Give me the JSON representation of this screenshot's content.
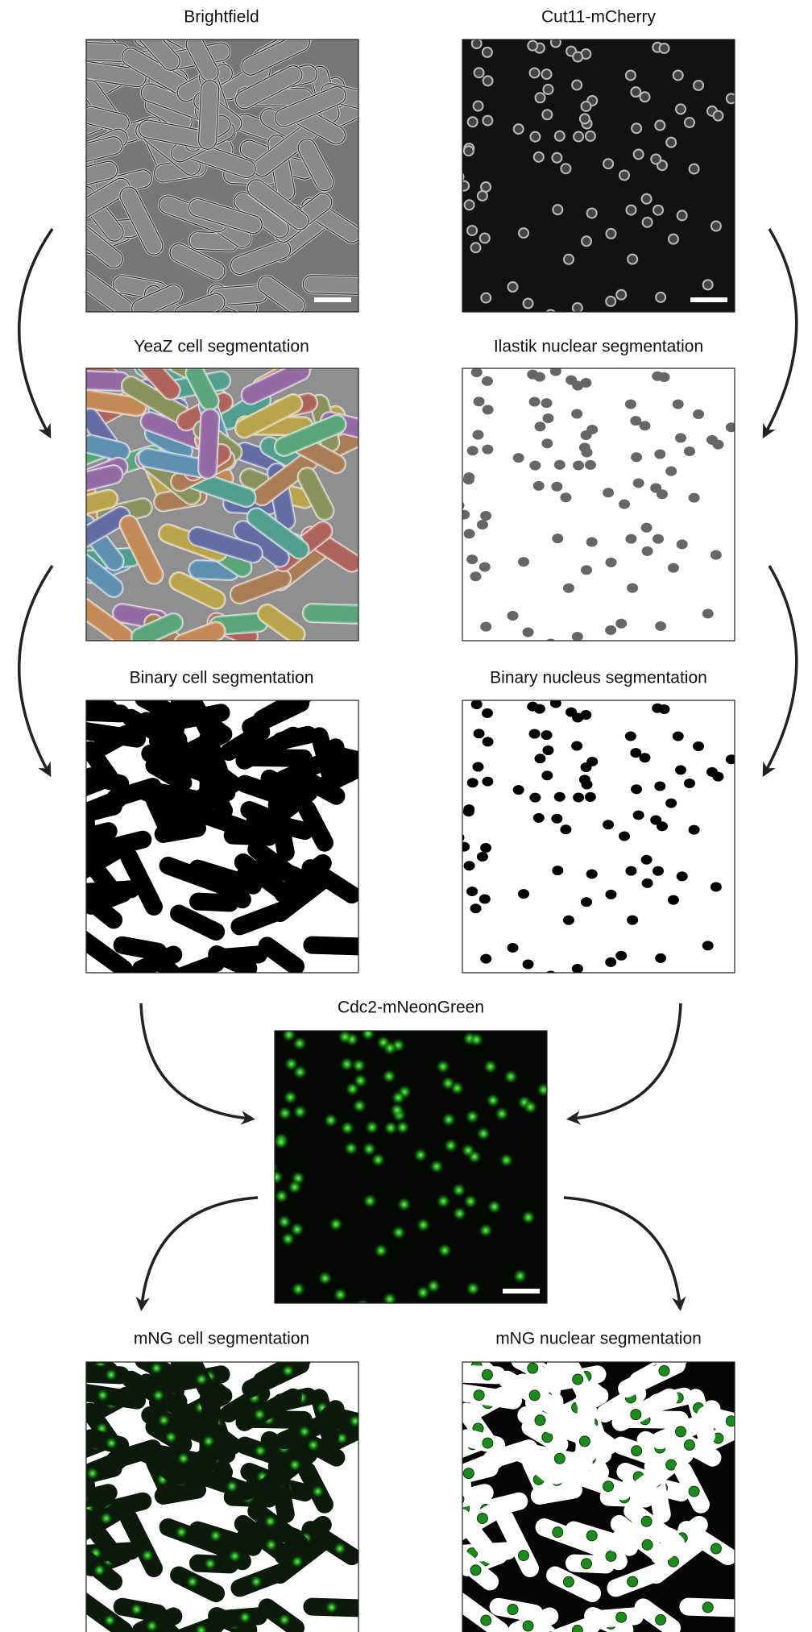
{
  "panels": [
    {
      "title": "Brightfield"
    },
    {
      "title": "Cut11-mCherry"
    },
    {
      "title": "YeaZ cell segmentation"
    },
    {
      "title": "Ilastik nuclear segmentation"
    },
    {
      "title": "Binary cell segmentation"
    },
    {
      "title": "Binary nucleus segmentation"
    },
    {
      "title": "Cdc2-mNeonGreen"
    },
    {
      "title": "mNG cell segmentation"
    },
    {
      "title": "mNG nuclear segmentation"
    }
  ]
}
